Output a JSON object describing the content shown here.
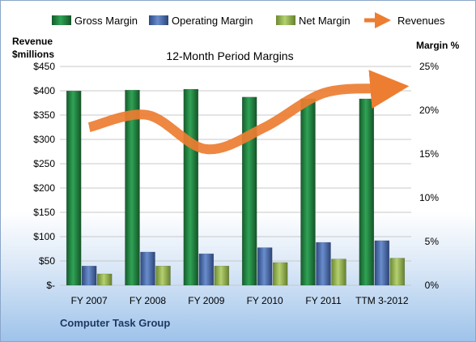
{
  "chart_data": {
    "type": "bar",
    "title": "12-Month Period Margins",
    "company": "Computer Task Group",
    "categories": [
      "FY 2007",
      "FY 2008",
      "FY 2009",
      "FY 2010",
      "FY 2011",
      "TTM 3-2012"
    ],
    "series": [
      {
        "name": "Gross Margin",
        "axis": "right",
        "unit": "%",
        "values": [
          22.2,
          22.3,
          22.4,
          21.5,
          21.3,
          21.3
        ],
        "color": "#1e7a3c"
      },
      {
        "name": "Operating Margin",
        "axis": "right",
        "unit": "%",
        "values": [
          2.2,
          3.8,
          3.6,
          4.3,
          4.9,
          5.1
        ],
        "color": "#3f5f9c"
      },
      {
        "name": "Net Margin",
        "axis": "right",
        "unit": "%",
        "values": [
          1.3,
          2.2,
          2.2,
          2.6,
          3.0,
          3.1
        ],
        "color": "#8fae4a"
      },
      {
        "name": "Revenues",
        "axis": "left",
        "type": "line",
        "values": [
          325,
          350,
          280,
          325,
          395,
          405
        ],
        "color": "#ed7d31"
      }
    ],
    "left_axis": {
      "label_line1": "Revenue",
      "label_line2": "$millions",
      "min": 0,
      "max": 450,
      "step": 50,
      "ticks": [
        "$-",
        "$50",
        "$100",
        "$150",
        "$200",
        "$250",
        "$300",
        "$350",
        "$400",
        "$450"
      ]
    },
    "right_axis": {
      "label": "Margin %",
      "min": 0,
      "max": 25,
      "step": 5,
      "ticks": [
        "0%",
        "5%",
        "10%",
        "15%",
        "20%",
        "25%"
      ]
    },
    "grid": true,
    "legend": "top"
  }
}
